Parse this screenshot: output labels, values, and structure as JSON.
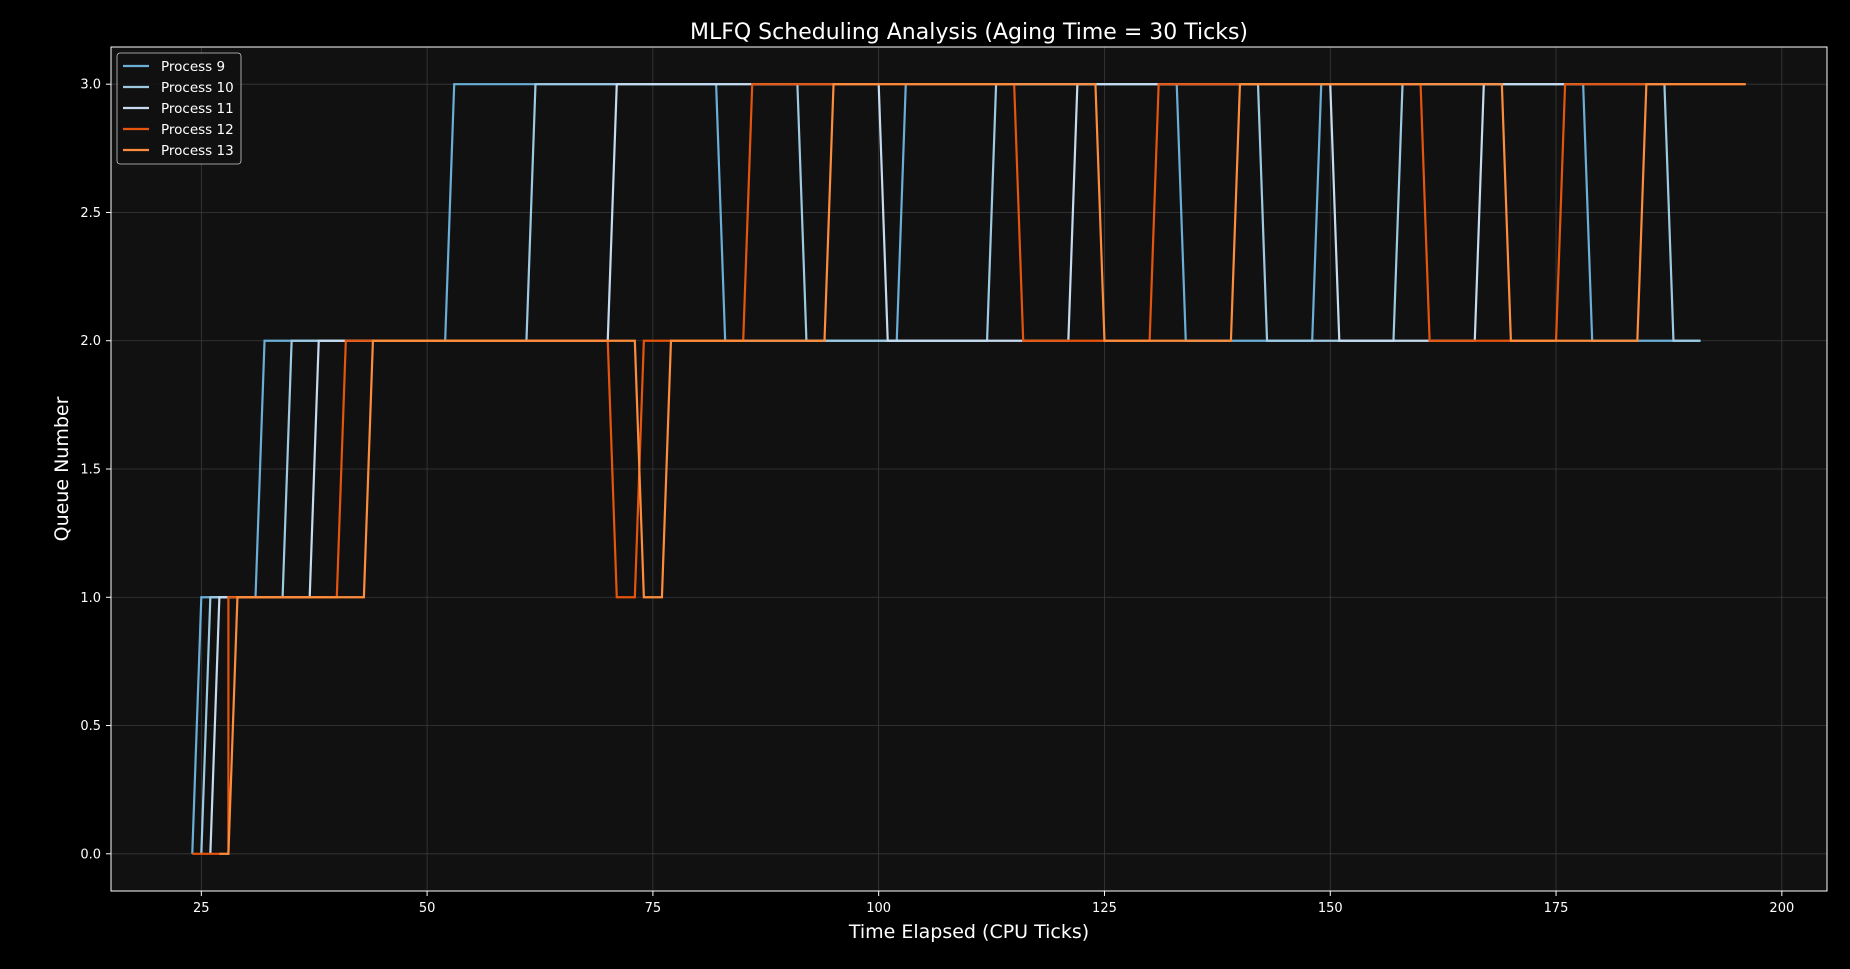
{
  "chart_data": {
    "type": "line",
    "title": "MLFQ Scheduling Analysis (Aging Time = 30 Ticks)",
    "xlabel": "Time Elapsed (CPU Ticks)",
    "ylabel": "Queue Number",
    "xlim": [
      15,
      205
    ],
    "ylim": [
      -0.145,
      3.145
    ],
    "xticks": [
      25,
      50,
      75,
      100,
      125,
      150,
      175,
      200
    ],
    "yticks": [
      0.0,
      0.5,
      1.0,
      1.5,
      2.0,
      2.5,
      3.0
    ],
    "xtick_labels": [
      "25",
      "50",
      "75",
      "100",
      "125",
      "150",
      "175",
      "200"
    ],
    "ytick_labels": [
      "0.0",
      "0.5",
      "1.0",
      "1.5",
      "2.0",
      "2.5",
      "3.0"
    ],
    "grid": true,
    "legend_position": "top-left",
    "colors": {
      "figure_background": "#000000",
      "plot_background": "#111111",
      "grid": "#3a3a3a",
      "axes": "#ffffff"
    },
    "series": [
      {
        "name": "Process 9",
        "color": "#6baed6",
        "points": [
          [
            24,
            0
          ],
          [
            25,
            1
          ],
          [
            31,
            1
          ],
          [
            32,
            2
          ],
          [
            52,
            2
          ],
          [
            53,
            3
          ],
          [
            82,
            3
          ],
          [
            83,
            2
          ],
          [
            102,
            2
          ],
          [
            103,
            3
          ],
          [
            133,
            3
          ],
          [
            134,
            2
          ],
          [
            148,
            2
          ],
          [
            149,
            3
          ],
          [
            178,
            3
          ],
          [
            179,
            2
          ],
          [
            191,
            2
          ]
        ]
      },
      {
        "name": "Process 10",
        "color": "#9ecae1",
        "points": [
          [
            25,
            0
          ],
          [
            26,
            1
          ],
          [
            34,
            1
          ],
          [
            35,
            2
          ],
          [
            61,
            2
          ],
          [
            62,
            3
          ],
          [
            91,
            3
          ],
          [
            92,
            2
          ],
          [
            112,
            2
          ],
          [
            113,
            3
          ],
          [
            142,
            3
          ],
          [
            143,
            2
          ],
          [
            157,
            2
          ],
          [
            158,
            3
          ],
          [
            187,
            3
          ],
          [
            188,
            2
          ],
          [
            191,
            2
          ]
        ]
      },
      {
        "name": "Process 11",
        "color": "#c6dbef",
        "points": [
          [
            26,
            0
          ],
          [
            27,
            1
          ],
          [
            37,
            1
          ],
          [
            38,
            2
          ],
          [
            70,
            2
          ],
          [
            71,
            3
          ],
          [
            100,
            3
          ],
          [
            101,
            2
          ],
          [
            121,
            2
          ],
          [
            122,
            3
          ],
          [
            150,
            3
          ],
          [
            151,
            2
          ],
          [
            166,
            2
          ],
          [
            167,
            3
          ],
          [
            176,
            3
          ]
        ]
      },
      {
        "name": "Process 12",
        "color": "#e6550d",
        "points": [
          [
            24,
            0
          ],
          [
            28,
            0
          ],
          [
            28,
            1
          ],
          [
            40,
            1
          ],
          [
            41,
            2
          ],
          [
            70,
            2
          ],
          [
            71,
            1
          ],
          [
            73,
            1
          ],
          [
            74,
            2
          ],
          [
            85,
            2
          ],
          [
            86,
            3
          ],
          [
            115,
            3
          ],
          [
            116,
            2
          ],
          [
            130,
            2
          ],
          [
            131,
            3
          ],
          [
            160,
            3
          ],
          [
            161,
            2
          ],
          [
            175,
            2
          ],
          [
            176,
            3
          ],
          [
            196,
            3
          ]
        ]
      },
      {
        "name": "Process 13",
        "color": "#fd8d3c",
        "points": [
          [
            27,
            0
          ],
          [
            28,
            0
          ],
          [
            29,
            1
          ],
          [
            43,
            1
          ],
          [
            44,
            2
          ],
          [
            73,
            2
          ],
          [
            74,
            1
          ],
          [
            76,
            1
          ],
          [
            77,
            2
          ],
          [
            94,
            2
          ],
          [
            95,
            3
          ],
          [
            124,
            3
          ],
          [
            125,
            2
          ],
          [
            139,
            2
          ],
          [
            140,
            3
          ],
          [
            169,
            3
          ],
          [
            170,
            2
          ],
          [
            184,
            2
          ],
          [
            185,
            3
          ],
          [
            196,
            3
          ]
        ]
      }
    ]
  }
}
